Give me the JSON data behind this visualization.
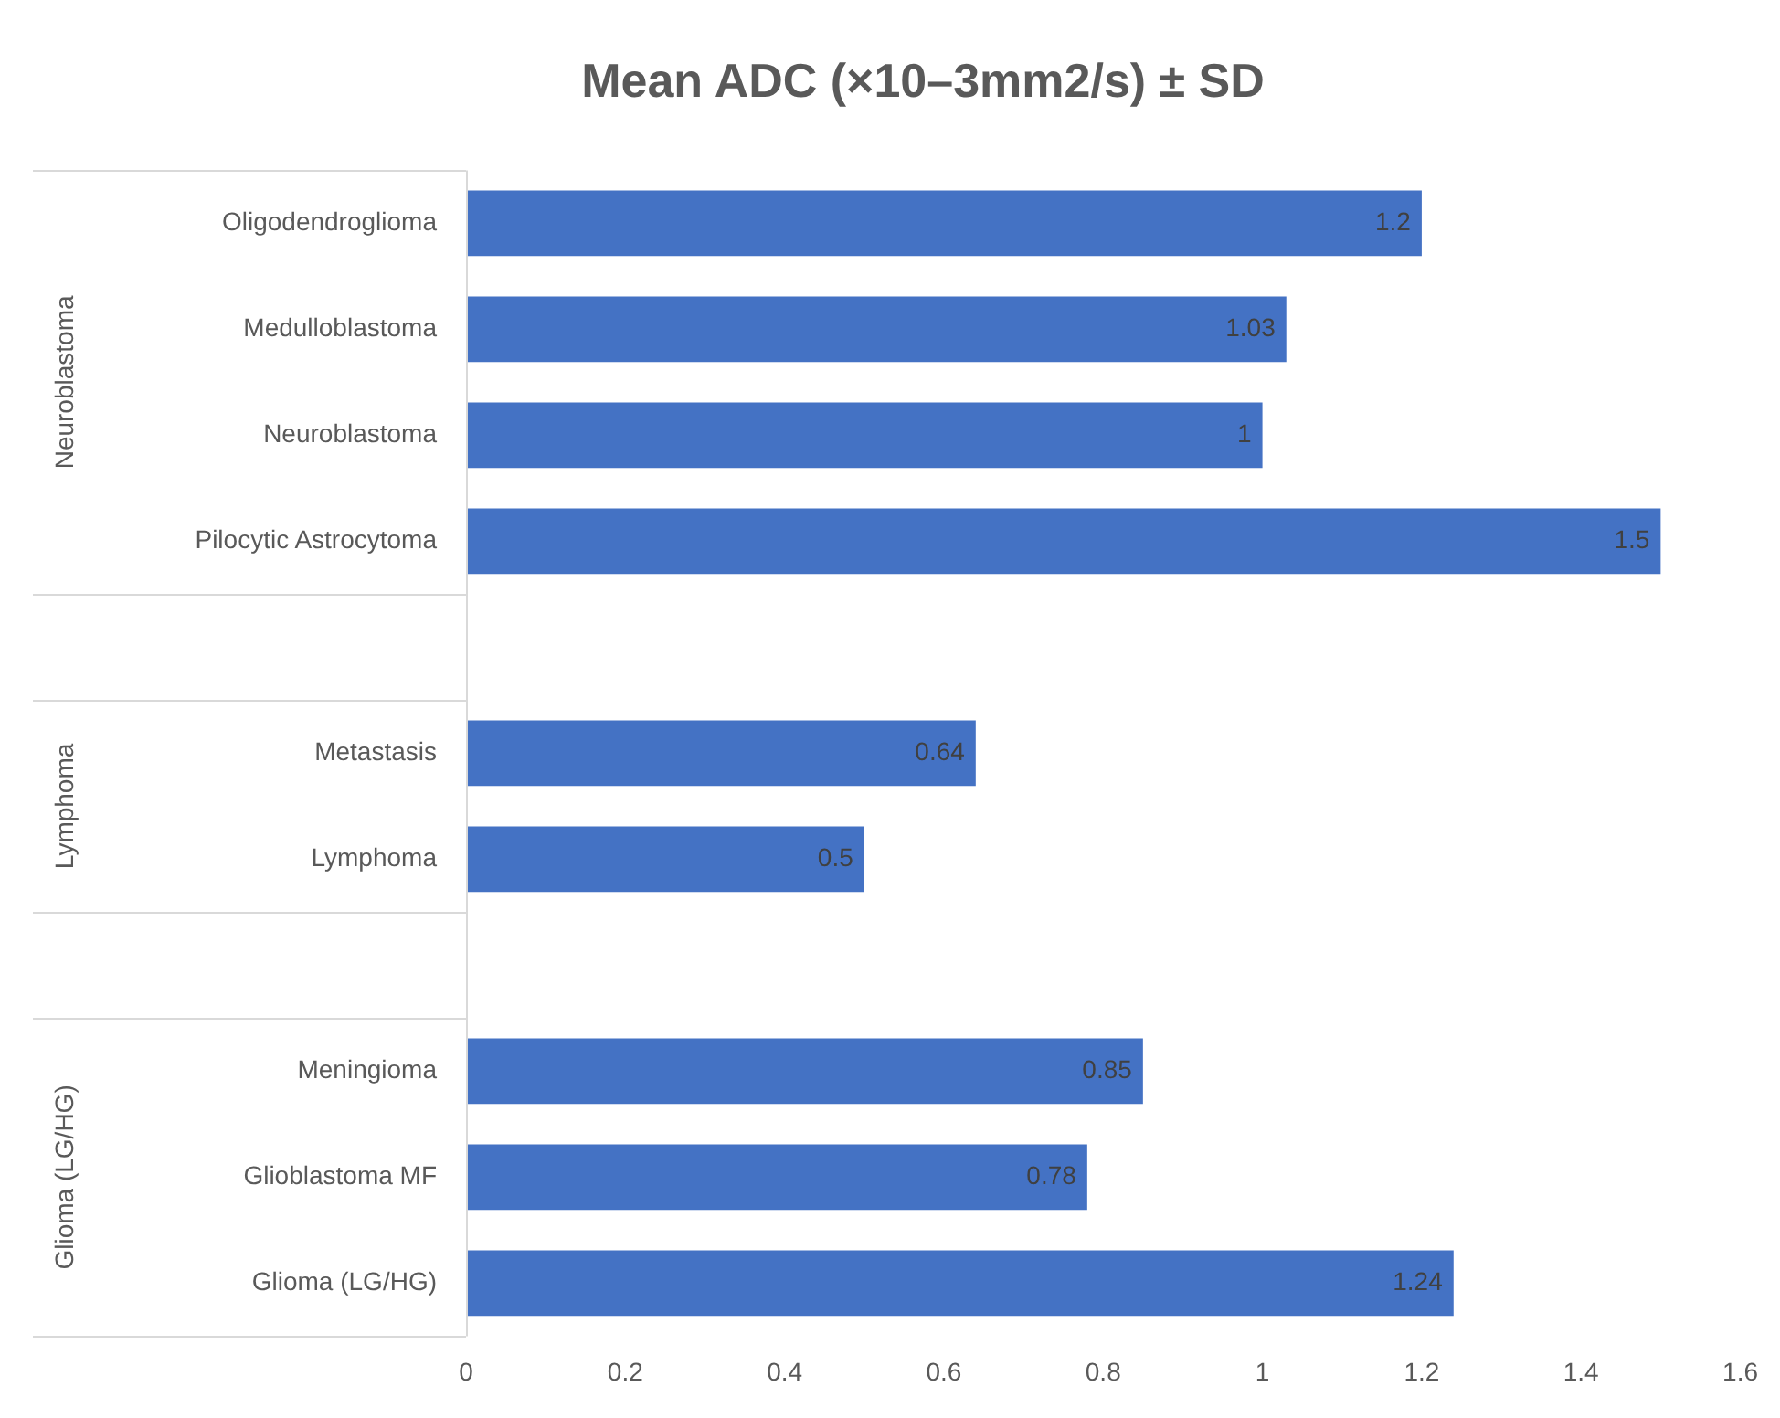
{
  "chart_data": {
    "type": "bar",
    "orientation": "horizontal",
    "title": "Mean ADC (×10–3mm2/s) ± SD",
    "categories": [
      "Oligodendroglioma",
      "Medulloblastoma",
      "Neuroblastoma",
      "Pilocytic Astrocytoma",
      null,
      "Metastasis",
      "Lymphoma",
      null,
      "Meningioma",
      "Glioblastoma MF",
      "Glioma (LG/HG)"
    ],
    "values": [
      1.2,
      1.03,
      1,
      1.5,
      null,
      0.64,
      0.5,
      null,
      0.85,
      0.78,
      1.24
    ],
    "color": "#4472c4",
    "xlim": [
      0,
      1.6
    ],
    "xticks": [
      0,
      0.2,
      0.4,
      0.6,
      0.8,
      1,
      1.2,
      1.4,
      1.6
    ],
    "grid": false,
    "data_labels": true,
    "annotations": [
      "Neuroblastoma",
      "Lymphoma",
      "Glioma (LG/HG)"
    ]
  }
}
